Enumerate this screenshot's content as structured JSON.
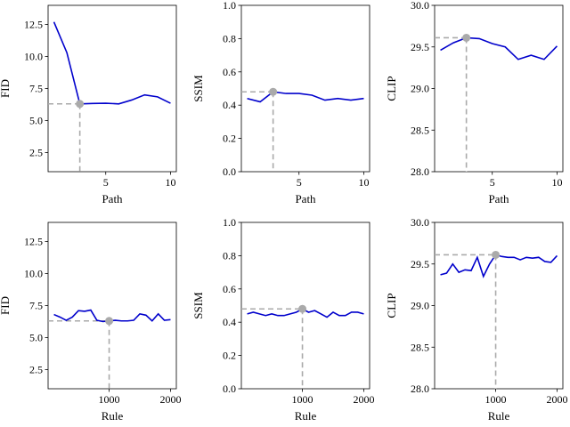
{
  "colors": {
    "line": "#0000cc",
    "highlight": "#aaaaaa"
  },
  "chart_data": [
    {
      "type": "line",
      "xlabel": "Path",
      "ylabel": "FID",
      "xlim": [
        0.55,
        10.45
      ],
      "ylim": [
        1.0,
        14.0
      ],
      "xticks": [
        5,
        10
      ],
      "yticks": [
        2.5,
        5.0,
        7.5,
        10.0,
        12.5
      ],
      "x": [
        1,
        2,
        3,
        4,
        5,
        6,
        7,
        8,
        9,
        10
      ],
      "values": [
        12.7,
        10.3,
        6.3,
        6.33,
        6.35,
        6.3,
        6.6,
        7.0,
        6.85,
        6.35
      ],
      "highlight": {
        "x": 3,
        "y": 6.3
      }
    },
    {
      "type": "line",
      "xlabel": "Path",
      "ylabel": "SSIM",
      "xlim": [
        0.55,
        10.45
      ],
      "ylim": [
        0.0,
        1.0
      ],
      "xticks": [
        5,
        10
      ],
      "yticks": [
        0.0,
        0.2,
        0.4,
        0.6,
        0.8,
        1.0
      ],
      "x": [
        1,
        2,
        3,
        4,
        5,
        6,
        7,
        8,
        9,
        10
      ],
      "values": [
        0.44,
        0.42,
        0.48,
        0.47,
        0.47,
        0.46,
        0.43,
        0.44,
        0.43,
        0.44
      ],
      "highlight": {
        "x": 3,
        "y": 0.48
      }
    },
    {
      "type": "line",
      "xlabel": "Path",
      "ylabel": "CLIP",
      "xlim": [
        0.55,
        10.45
      ],
      "ylim": [
        28.0,
        30.0
      ],
      "xticks": [
        5,
        10
      ],
      "yticks": [
        28.0,
        28.5,
        29.0,
        29.5,
        30.0
      ],
      "x": [
        1,
        2,
        3,
        4,
        5,
        6,
        7,
        8,
        9,
        10
      ],
      "values": [
        29.46,
        29.55,
        29.61,
        29.6,
        29.54,
        29.5,
        29.35,
        29.4,
        29.35,
        29.51
      ],
      "highlight": {
        "x": 3,
        "y": 29.61
      }
    },
    {
      "type": "line",
      "xlabel": "Rule",
      "ylabel": "FID",
      "xlim": [
        5,
        2095
      ],
      "ylim": [
        1.0,
        14.0
      ],
      "xticks": [
        1000,
        2000
      ],
      "yticks": [
        2.5,
        5.0,
        7.5,
        10.0,
        12.5
      ],
      "x": [
        100,
        200,
        300,
        400,
        500,
        600,
        700,
        800,
        900,
        1000,
        1100,
        1200,
        1300,
        1400,
        1500,
        1600,
        1700,
        1800,
        1900,
        2000
      ],
      "values": [
        6.8,
        6.6,
        6.35,
        6.6,
        7.1,
        7.05,
        7.15,
        6.35,
        6.25,
        6.3,
        6.35,
        6.3,
        6.3,
        6.35,
        6.85,
        6.75,
        6.3,
        6.85,
        6.35,
        6.4
      ],
      "highlight": {
        "x": 1000,
        "y": 6.3
      }
    },
    {
      "type": "line",
      "xlabel": "Rule",
      "ylabel": "SSIM",
      "xlim": [
        5,
        2095
      ],
      "ylim": [
        0.0,
        1.0
      ],
      "xticks": [
        1000,
        2000
      ],
      "yticks": [
        0.0,
        0.2,
        0.4,
        0.6,
        0.8,
        1.0
      ],
      "x": [
        100,
        200,
        300,
        400,
        500,
        600,
        700,
        800,
        900,
        1000,
        1100,
        1200,
        1300,
        1400,
        1500,
        1600,
        1700,
        1800,
        1900,
        2000
      ],
      "values": [
        0.45,
        0.46,
        0.45,
        0.44,
        0.45,
        0.44,
        0.44,
        0.45,
        0.46,
        0.48,
        0.46,
        0.47,
        0.45,
        0.43,
        0.46,
        0.44,
        0.44,
        0.46,
        0.46,
        0.45
      ],
      "highlight": {
        "x": 1000,
        "y": 0.48
      }
    },
    {
      "type": "line",
      "xlabel": "Rule",
      "ylabel": "CLIP",
      "xlim": [
        5,
        2095
      ],
      "ylim": [
        28.0,
        30.0
      ],
      "xticks": [
        1000,
        2000
      ],
      "yticks": [
        28.0,
        28.5,
        29.0,
        29.5,
        30.0
      ],
      "x": [
        100,
        200,
        300,
        400,
        500,
        600,
        700,
        800,
        900,
        1000,
        1100,
        1200,
        1300,
        1400,
        1500,
        1600,
        1700,
        1800,
        1900,
        2000
      ],
      "values": [
        29.37,
        29.39,
        29.5,
        29.4,
        29.43,
        29.42,
        29.58,
        29.35,
        29.5,
        29.61,
        29.59,
        29.58,
        29.58,
        29.55,
        29.58,
        29.57,
        29.58,
        29.53,
        29.52,
        29.6
      ],
      "highlight": {
        "x": 1000,
        "y": 29.61
      }
    }
  ]
}
